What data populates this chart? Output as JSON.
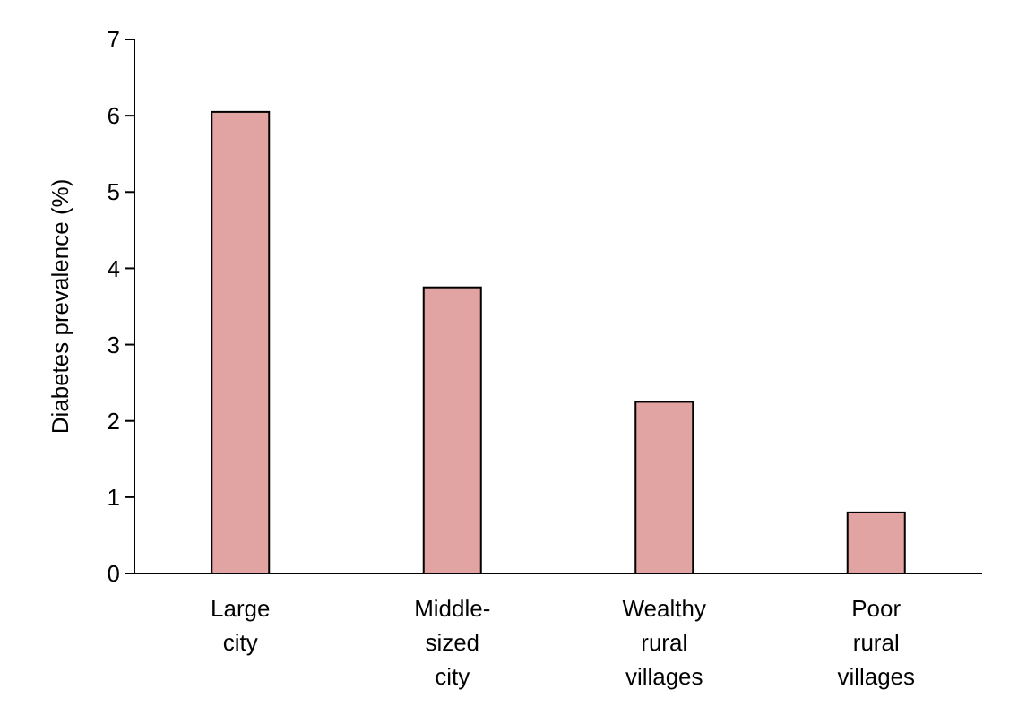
{
  "chart_data": {
    "type": "bar",
    "ylabel": "Diabetes prevalence (%)",
    "categories": [
      "Large city",
      "Middle-sized city",
      "Wealthy rural villages",
      "Poor rural villages"
    ],
    "values": [
      6.05,
      3.75,
      2.25,
      0.8
    ],
    "color": "#e2a3a3",
    "ylim": [
      0,
      7
    ],
    "yticks": [
      0,
      1,
      2,
      3,
      4,
      5,
      6,
      7
    ],
    "grid": false
  }
}
